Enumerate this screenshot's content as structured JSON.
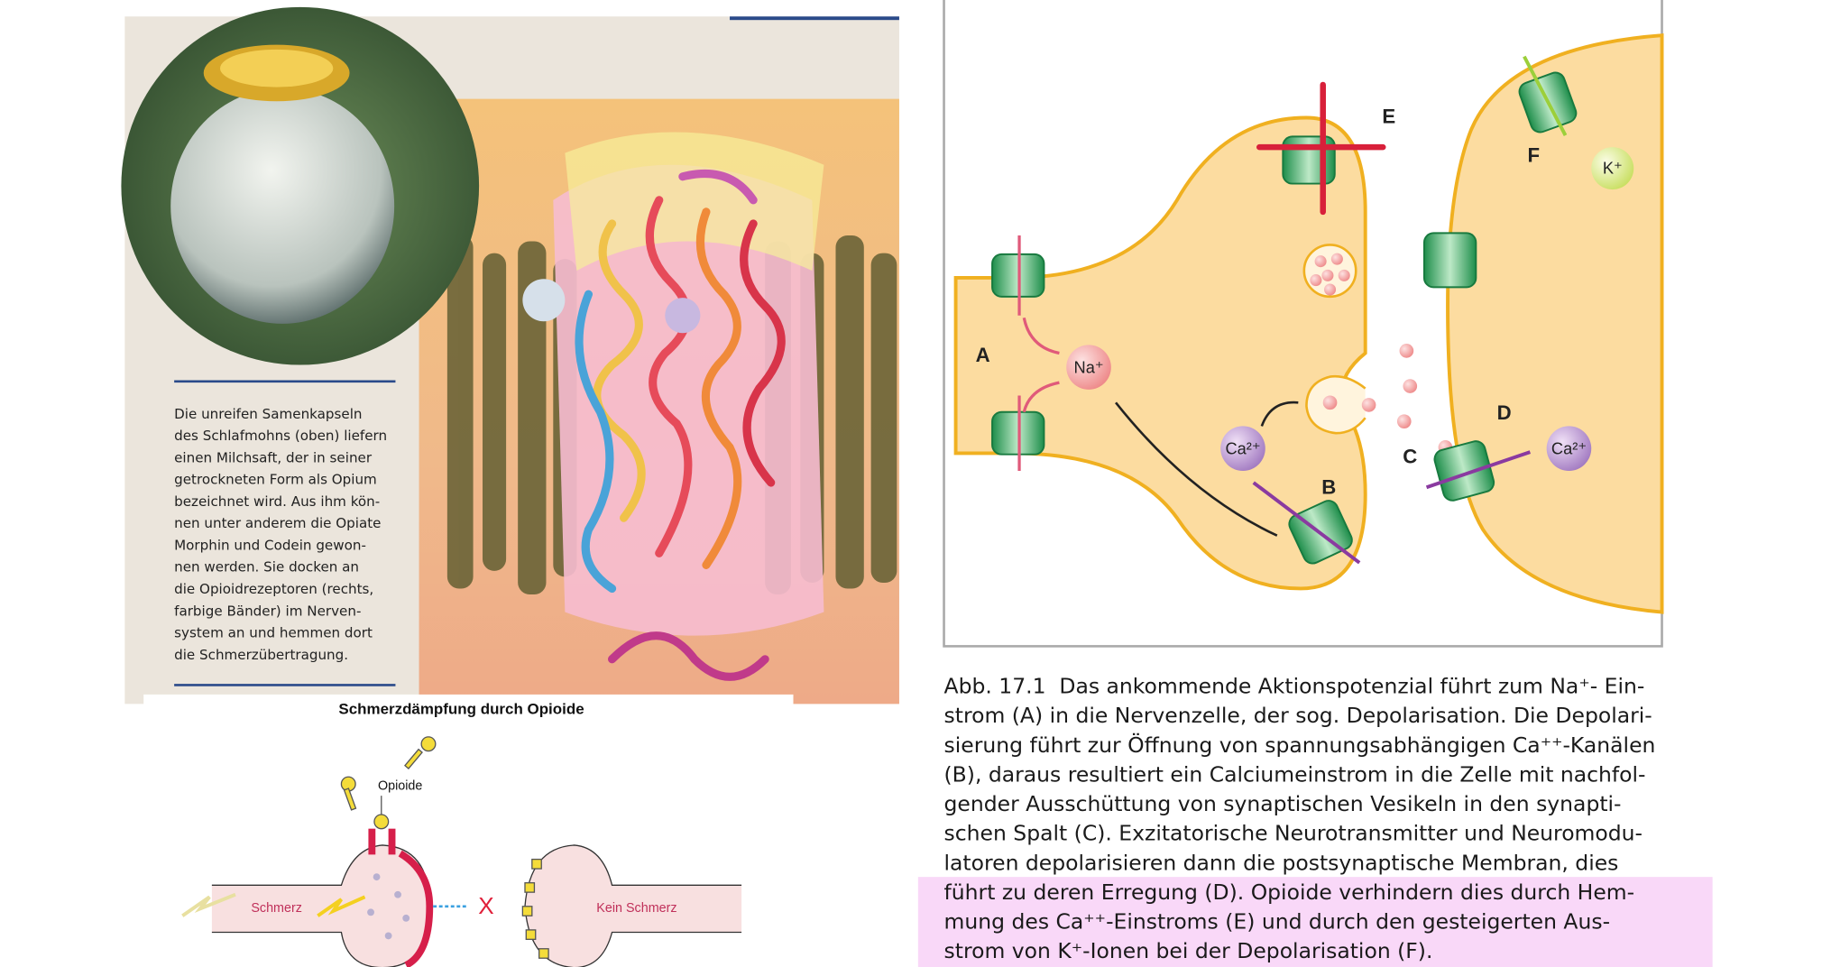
{
  "photo_caption": {
    "lines": [
      "Die unreifen Samenkapseln",
      "des Schlafmohns (oben) liefern",
      "einen Milchsaft, der in seiner",
      "getrockneten Form als Opium",
      "bezeichnet wird. Aus ihm kön-",
      "nen unter anderem die Opiate",
      "Morphin und Codein gewon-",
      "nen werden. Sie docken an",
      "die Opioidrezeptoren (rechts,",
      "farbige Bänder) im Nerven-",
      "system an und hemmen dort",
      "die Schmerzübertragung."
    ]
  },
  "opioid_diagram": {
    "title": "Schmerzdämpfung durch Opioide",
    "opioide": "Opioide",
    "schmerz": "Schmerz",
    "block": "X",
    "kein_schmerz": "Kein Schmerz"
  },
  "synapse_diagram": {
    "labels": {
      "A": "A",
      "B": "B",
      "C": "C",
      "D": "D",
      "E": "E",
      "F": "F"
    },
    "na": "Na⁺",
    "ca_inside": "Ca²⁺",
    "ca_post": "Ca²⁺",
    "k": "K⁺"
  },
  "figure_caption": {
    "number": "Abb. 17.1",
    "lines": [
      "Das ankommende Aktionspotenzial führt zum Na⁺- Ein-",
      "strom (A) in die Nervenzelle, der sog. Depolarisation. Die Depolari-",
      "sierung führt zur Öffnung von spannungsabhängigen Ca⁺⁺-Kanälen",
      "(B), daraus resultiert ein Calciumeinstrom in die Zelle mit nachfol-",
      "gender Ausschüttung von synaptischen Vesikeln in den synapti-",
      "schen Spalt (C). Exzitatorische Neurotransmitter und Neuromodu-",
      "latoren depolarisieren dann die postsynaptische Membran, dies",
      "führt zu deren Erregung (D). Opioide verhindern dies durch Hem-",
      "mung des Ca⁺⁺-Einstroms (E) und durch den gesteigerten Aus-",
      "strom von K⁺-Ionen bei der Depolarisation (F)."
    ]
  }
}
